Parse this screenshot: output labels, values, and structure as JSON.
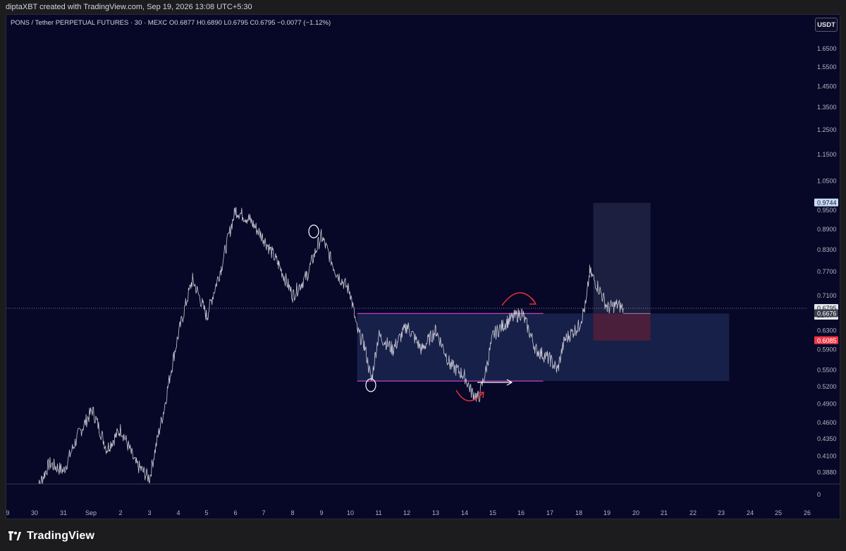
{
  "header": {
    "caption": "diptaXBT created with TradingView.com, Sep 19, 2026 13:08 UTC+5:30"
  },
  "legend": {
    "symbol_line": "PONS / Tether PERPETUAL FUTURES · 30 · MEXC  O0.6877  H0.6890  L0.6795  C0.6795  −0.0077 (−1.12%)"
  },
  "toolbar": {
    "currency_label": "USDT"
  },
  "footer": {
    "brand": "TradingView"
  },
  "colors": {
    "background": "#070727",
    "price_line": "#c9c9d4",
    "range_box": "#1a2450",
    "range_line": "#c341c3",
    "arrow_red": "#d9323a",
    "target_zone": "#1c1f3f",
    "stop_zone": "#4a1f3c",
    "label_blue": "#c9dcfb",
    "label_red": "#f23645"
  },
  "chart_data": {
    "type": "line",
    "title": "PONS / Tether PERPETUAL FUTURES · 30 · MEXC",
    "log_scale": true,
    "grid": false,
    "xlabel": "",
    "ylabel": "",
    "x_ticks": [
      "9",
      "30",
      "31",
      "Sep",
      "2",
      "3",
      "4",
      "5",
      "6",
      "7",
      "8",
      "9",
      "10",
      "11",
      "12",
      "13",
      "14",
      "15",
      "16",
      "17",
      "18",
      "19",
      "20",
      "21",
      "22",
      "23",
      "24",
      "25",
      "26"
    ],
    "y_ticks": [
      "1.6500",
      "1.5500",
      "1.4500",
      "1.3500",
      "1.2500",
      "1.1500",
      "1.0500",
      "0.9500",
      "0.8900",
      "0.8300",
      "0.7700",
      "0.7100",
      "0.6300",
      "0.5900",
      "0.5500",
      "0.5200",
      "0.4900",
      "0.4600",
      "0.4350",
      "0.4100",
      "0.3880",
      "0"
    ],
    "ohlc_last": {
      "open": 0.6877,
      "high": 0.689,
      "low": 0.6795,
      "close": 0.6795,
      "change": -0.0077,
      "change_pct": -1.12
    },
    "series": [
      {
        "name": "PONS/USDT",
        "points": [
          [
            "Aug 30",
            0.36
          ],
          [
            "Aug 30 12:00",
            0.4
          ],
          [
            "Aug 31",
            0.39
          ],
          [
            "Aug 31 12:00",
            0.44
          ],
          [
            "Sep 1",
            0.48
          ],
          [
            "Sep 1 12:00",
            0.42
          ],
          [
            "Sep 2",
            0.45
          ],
          [
            "Sep 2 12:00",
            0.4
          ],
          [
            "Sep 3",
            0.38
          ],
          [
            "Sep 3 12:00",
            0.48
          ],
          [
            "Sep 4",
            0.62
          ],
          [
            "Sep 4 12:00",
            0.75
          ],
          [
            "Sep 5",
            0.66
          ],
          [
            "Sep 5 12:00",
            0.78
          ],
          [
            "Sep 6",
            0.95
          ],
          [
            "Sep 6 12:00",
            0.92
          ],
          [
            "Sep 7",
            0.86
          ],
          [
            "Sep 7 12:00",
            0.79
          ],
          [
            "Sep 8",
            0.71
          ],
          [
            "Sep 8 12:00",
            0.76
          ],
          [
            "Sep 9",
            0.87
          ],
          [
            "Sep 9 12:00",
            0.77
          ],
          [
            "Sep 10",
            0.72
          ],
          [
            "Sep 10 06:00",
            0.63
          ],
          [
            "Sep 10 12:00",
            0.6
          ],
          [
            "Sep 10 18:00",
            0.53
          ],
          [
            "Sep 11",
            0.62
          ],
          [
            "Sep 11 12:00",
            0.59
          ],
          [
            "Sep 12",
            0.64
          ],
          [
            "Sep 12 12:00",
            0.59
          ],
          [
            "Sep 13",
            0.63
          ],
          [
            "Sep 13 12:00",
            0.56
          ],
          [
            "Sep 14",
            0.54
          ],
          [
            "Sep 14 06:00",
            0.51
          ],
          [
            "Sep 14 12:00",
            0.5
          ],
          [
            "Sep 14 18:00",
            0.55
          ],
          [
            "Sep 15",
            0.62
          ],
          [
            "Sep 15 12:00",
            0.65
          ],
          [
            "Sep 16",
            0.67
          ],
          [
            "Sep 16 12:00",
            0.59
          ],
          [
            "Sep 17",
            0.57
          ],
          [
            "Sep 17 06:00",
            0.55
          ],
          [
            "Sep 17 12:00",
            0.61
          ],
          [
            "Sep 18",
            0.64
          ],
          [
            "Sep 18 06:00",
            0.69
          ],
          [
            "Sep 18 09:00",
            0.77
          ],
          [
            "Sep 18 18:00",
            0.72
          ],
          [
            "Sep 19",
            0.68
          ],
          [
            "Sep 19 08:00",
            0.6877
          ],
          [
            "Sep 19 13:08",
            0.6795
          ]
        ]
      }
    ],
    "price_labels": [
      {
        "text": "0.9744",
        "value": 0.9744,
        "style": "blue"
      },
      {
        "text": "0.6795",
        "value": 0.6795,
        "style": "current",
        "sub": "21:07"
      },
      {
        "text": "0.6676",
        "value": 0.6676,
        "style": "gray"
      },
      {
        "text": "0.6085",
        "value": 0.6085,
        "style": "red"
      }
    ],
    "annotations": {
      "range": {
        "from": "Sep 10 06:00",
        "to": "Sep 16 18:00",
        "extend_to": "Sep 23 06:00",
        "top": 0.6676,
        "bottom": 0.53
      },
      "position": {
        "from": "Sep 18 12:00",
        "to": "Sep 20 24:00",
        "entry": 0.6676,
        "target": 0.9744,
        "stop": 0.6085
      }
    }
  }
}
